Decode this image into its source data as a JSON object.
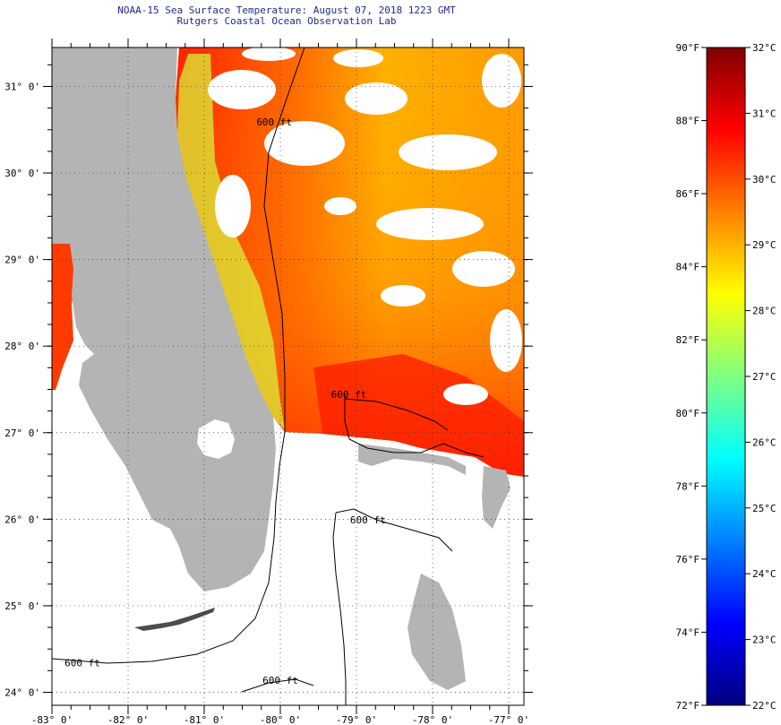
{
  "title": {
    "line1": "NOAA-15 Sea Surface Temperature:  August 07, 2018 1223 GMT",
    "line2": "Rutgers Coastal Ocean Observation Lab"
  },
  "map": {
    "lon_range": [
      -83,
      -76.8
    ],
    "lat_range": [
      23.85,
      31.45
    ],
    "lat_labels": [
      {
        "lat": 31,
        "text": "31° 0'"
      },
      {
        "lat": 30,
        "text": "30° 0'"
      },
      {
        "lat": 29,
        "text": "29° 0'"
      },
      {
        "lat": 28,
        "text": "28° 0'"
      },
      {
        "lat": 27,
        "text": "27° 0'"
      },
      {
        "lat": 26,
        "text": "26° 0'"
      },
      {
        "lat": 25,
        "text": "25° 0'"
      },
      {
        "lat": 24,
        "text": "24° 0'"
      }
    ],
    "lon_labels": [
      {
        "lon": -83,
        "text": "-83° 0'"
      },
      {
        "lon": -82,
        "text": "-82° 0'"
      },
      {
        "lon": -81,
        "text": "-81° 0'"
      },
      {
        "lon": -80,
        "text": "-80° 0'"
      },
      {
        "lon": -79,
        "text": "-79° 0'"
      },
      {
        "lon": -78,
        "text": "-78° 0'"
      },
      {
        "lon": -77,
        "text": "-77° 0'"
      }
    ],
    "contour_labels": [
      {
        "text": "600 ft",
        "lon": -79.1,
        "lat": 27.4
      },
      {
        "text": "600 ft",
        "lon": -78.85,
        "lat": 25.95
      },
      {
        "text": "600 ft",
        "lon": -82.6,
        "lat": 24.3
      },
      {
        "text": "600 ft",
        "lon": -80.0,
        "lat": 24.1
      },
      {
        "text": "600 ft",
        "lon": -80.08,
        "lat": 30.55
      }
    ],
    "land_color": "#b4b4b4",
    "no_data_color": "#ffffff"
  },
  "colorbar": {
    "min_f": 72,
    "max_f": 90,
    "min_c": 22,
    "max_c": 32,
    "f_labels": [
      "90°F",
      "88°F",
      "86°F",
      "84°F",
      "82°F",
      "80°F",
      "78°F",
      "76°F",
      "74°F",
      "72°F"
    ],
    "c_labels": [
      "32°C",
      "31°C",
      "30°C",
      "29°C",
      "28°C",
      "27°C",
      "26°C",
      "25°C",
      "24°C",
      "23°C",
      "22°C"
    ],
    "gradient": [
      "#800000",
      "#ff0000",
      "#ff8000",
      "#ffff00",
      "#80ff80",
      "#00ffff",
      "#0080ff",
      "#0000ff",
      "#000080"
    ]
  }
}
